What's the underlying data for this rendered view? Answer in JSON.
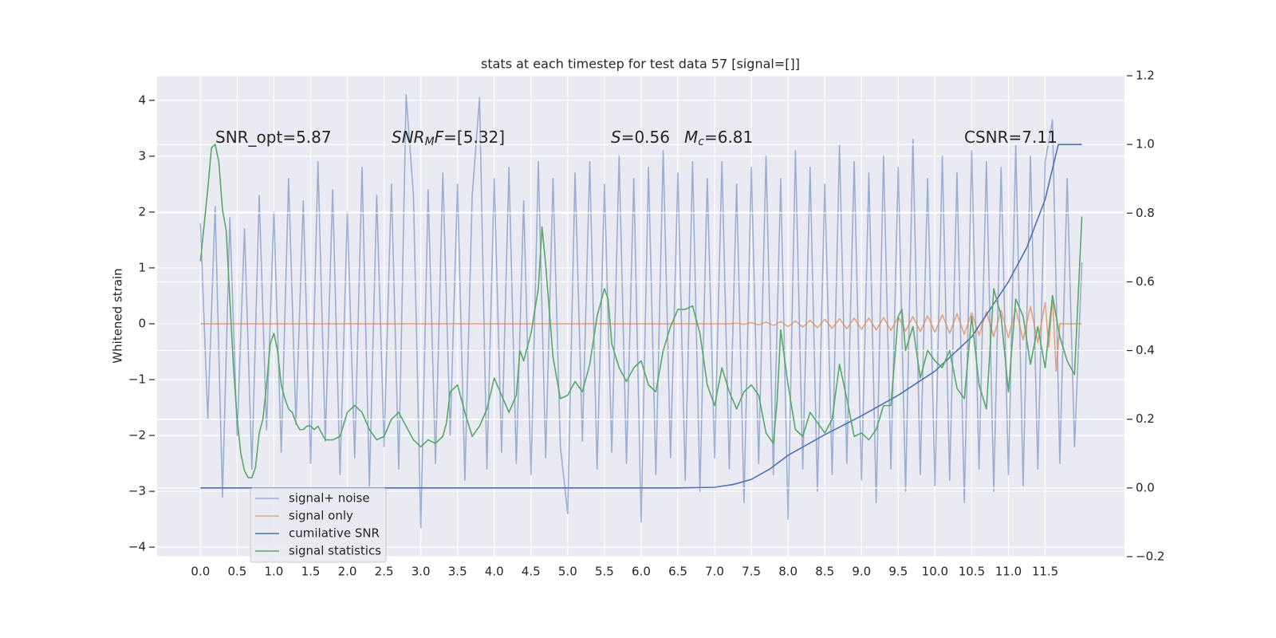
{
  "chart_data": {
    "type": "line",
    "title": "stats at each timestep for test data 57 [signal=[]]",
    "ylabel": "Whitened strain",
    "xlim": [
      -0.59,
      12.58
    ],
    "ylim": [
      -4.17,
      4.44
    ],
    "y2lim": [
      -0.2,
      1.2
    ],
    "xticks": [
      {
        "value": 0,
        "label": "0.0"
      },
      0.5,
      {
        "value": 1,
        "label": "1.0"
      },
      1.5,
      {
        "value": 2,
        "label": "2.0"
      },
      2.5,
      {
        "value": 3,
        "label": "3.0"
      },
      3.5,
      {
        "value": 4,
        "label": "4.0"
      },
      4.5,
      {
        "value": 5,
        "label": "5.0"
      },
      5.5,
      {
        "value": 6,
        "label": "6.0"
      },
      6.5,
      {
        "value": 7,
        "label": "7.0"
      },
      7.5,
      {
        "value": 8,
        "label": "8.0"
      },
      8.5,
      {
        "value": 9,
        "label": "9.0"
      },
      9.5,
      {
        "value": 10,
        "label": "10.0"
      },
      10.5,
      {
        "value": 11,
        "label": "11.0"
      },
      11.5
    ],
    "yticks": [
      {
        "value": -4,
        "label": "−4"
      },
      {
        "value": -3,
        "label": "−3"
      },
      {
        "value": -2,
        "label": "−2"
      },
      {
        "value": -1,
        "label": "−1"
      },
      0,
      1,
      2,
      3,
      4
    ],
    "y2ticks": [
      {
        "value": -0.2,
        "label": "−0.2"
      },
      {
        "value": 0,
        "label": "0.0"
      },
      0.2,
      0.4,
      0.6,
      0.8,
      {
        "value": 1,
        "label": "1.0"
      },
      1.2
    ],
    "grid": true,
    "legend": "lower left",
    "annotations": [
      [
        {
          "text": "SNR_opt=5.87",
          "style": "normal"
        }
      ],
      [
        {
          "text": "SNR",
          "style": "italic"
        },
        {
          "text": "M",
          "style": "italic-sub"
        },
        {
          "text": "F",
          "style": "italic"
        },
        {
          "text": "=[5.32]",
          "style": "normal"
        }
      ],
      [
        {
          "text": "S",
          "style": "italic"
        },
        {
          "text": "=0.56",
          "style": "normal"
        }
      ],
      [
        {
          "text": "M",
          "style": "italic"
        },
        {
          "text": "c",
          "style": "italic-sub"
        },
        {
          "text": "=6.81",
          "style": "normal"
        }
      ],
      [
        {
          "text": "CSNR=7.11",
          "style": "normal"
        }
      ]
    ],
    "series": [
      {
        "name": "signal+ noise",
        "color": "#4c72b0",
        "opacity": 0.5,
        "x": [
          0,
          0.1,
          0.2,
          0.3,
          0.4,
          0.5,
          0.6,
          0.7,
          0.8,
          0.9,
          1,
          1.1,
          1.2,
          1.3,
          1.4,
          1.5,
          1.6,
          1.7,
          1.8,
          1.9,
          2,
          2.1,
          2.2,
          2.3,
          2.4,
          2.5,
          2.6,
          2.7,
          2.8,
          2.9,
          3,
          3.1,
          3.2,
          3.3,
          3.4,
          3.5,
          3.6,
          3.7,
          3.8,
          3.9,
          4,
          4.1,
          4.2,
          4.3,
          4.4,
          4.5,
          4.6,
          4.7,
          4.8,
          4.9,
          5,
          5.1,
          5.2,
          5.3,
          5.4,
          5.5,
          5.6,
          5.7,
          5.8,
          5.9,
          6,
          6.1,
          6.2,
          6.3,
          6.4,
          6.5,
          6.6,
          6.7,
          6.8,
          6.9,
          7,
          7.1,
          7.2,
          7.3,
          7.4,
          7.5,
          7.6,
          7.7,
          7.8,
          7.9,
          8,
          8.1,
          8.2,
          8.3,
          8.4,
          8.5,
          8.6,
          8.7,
          8.8,
          8.9,
          9,
          9.1,
          9.2,
          9.3,
          9.4,
          9.5,
          9.6,
          9.7,
          9.8,
          9.9,
          10,
          10.1,
          10.2,
          10.3,
          10.4,
          10.5,
          10.6,
          10.7,
          10.8,
          10.9,
          11,
          11.1,
          11.2,
          11.3,
          11.4,
          11.5,
          11.6,
          11.7,
          11.8,
          11.9,
          12
        ],
        "values": [
          1.8,
          -1.7,
          2.1,
          -3.1,
          1.9,
          -2.0,
          1.7,
          -2.6,
          2.3,
          -1.9,
          2.0,
          -2.3,
          2.6,
          -1.8,
          2.2,
          -2.5,
          2.9,
          -2.1,
          2.4,
          -2.7,
          2.0,
          -2.4,
          2.8,
          -2.9,
          2.3,
          -2.2,
          2.5,
          -2.6,
          4.1,
          2.3,
          -3.65,
          2.4,
          -2.5,
          2.7,
          -2.0,
          2.5,
          -2.8,
          2.3,
          4.05,
          -2.6,
          2.6,
          -2.3,
          2.8,
          -2.5,
          2.2,
          -2.7,
          2.9,
          -2.4,
          2.6,
          -2.2,
          -3.4,
          2.7,
          -2.1,
          2.9,
          -2.6,
          2.5,
          -2.3,
          3.0,
          -2.5,
          2.6,
          -3.55,
          2.8,
          -2.7,
          3.1,
          -2.4,
          2.7,
          -2.8,
          2.9,
          -3.0,
          2.6,
          -2.4,
          2.9,
          -2.6,
          2.5,
          -3.2,
          2.8,
          -2.5,
          3.0,
          -2.7,
          2.6,
          -3.5,
          3.1,
          -2.6,
          2.8,
          -3.0,
          2.5,
          -2.7,
          3.2,
          -2.5,
          2.9,
          -2.8,
          2.7,
          -3.2,
          3.0,
          -2.6,
          2.8,
          -3.0,
          3.3,
          -2.7,
          2.6,
          -2.9,
          3.0,
          -2.8,
          2.7,
          -3.2,
          3.1,
          -2.6,
          2.9,
          -3.0,
          2.8,
          -2.7,
          3.2,
          -2.9,
          3.0,
          -2.6,
          2.9,
          3.65,
          -2.5,
          2.6,
          -2.2,
          1.1
        ]
      },
      {
        "name": "signal only",
        "color": "#dd8452",
        "opacity": 0.7,
        "x": [
          0,
          7.2,
          7.3,
          7.4,
          7.5,
          7.6,
          7.7,
          7.8,
          7.9,
          8,
          8.1,
          8.2,
          8.3,
          8.4,
          8.5,
          8.6,
          8.7,
          8.8,
          8.9,
          9,
          9.1,
          9.2,
          9.3,
          9.4,
          9.5,
          9.6,
          9.7,
          9.8,
          9.9,
          10,
          10.1,
          10.2,
          10.3,
          10.4,
          10.5,
          10.6,
          10.7,
          10.8,
          10.9,
          11,
          11.1,
          11.2,
          11.3,
          11.4,
          11.5,
          11.55,
          11.6,
          11.65,
          11.7,
          12
        ],
        "values": [
          0,
          0,
          0.01,
          -0.01,
          0.02,
          -0.02,
          0.03,
          -0.03,
          0.04,
          -0.05,
          0.05,
          -0.06,
          0.06,
          -0.07,
          0.08,
          -0.08,
          0.09,
          -0.09,
          0.1,
          -0.1,
          0.1,
          -0.11,
          0.11,
          -0.12,
          0.12,
          -0.13,
          0.13,
          -0.14,
          0.14,
          -0.15,
          0.16,
          -0.17,
          0.18,
          -0.19,
          0.2,
          -0.21,
          0.22,
          -0.23,
          0.24,
          -0.25,
          0.27,
          -0.29,
          0.31,
          -0.34,
          0.38,
          -0.42,
          0.5,
          -0.85,
          0,
          0
        ]
      },
      {
        "name": "cumilative SNR",
        "color": "#4c72b0",
        "axis": "y2",
        "x": [
          0,
          6.5,
          7,
          7.25,
          7.5,
          7.75,
          8,
          8.5,
          9,
          9.5,
          10,
          10.5,
          11,
          11.25,
          11.5,
          11.6,
          11.68,
          12
        ],
        "values": [
          0,
          0,
          0.002,
          0.01,
          0.025,
          0.055,
          0.095,
          0.155,
          0.21,
          0.27,
          0.34,
          0.44,
          0.6,
          0.7,
          0.84,
          0.93,
          1,
          1
        ]
      },
      {
        "name": "signal statistics",
        "color": "#55a868",
        "axis": "y2",
        "x": [
          0,
          0.1,
          0.15,
          0.2,
          0.25,
          0.3,
          0.35,
          0.4,
          0.45,
          0.5,
          0.55,
          0.6,
          0.65,
          0.7,
          0.75,
          0.8,
          0.85,
          0.9,
          0.95,
          1,
          1.05,
          1.1,
          1.15,
          1.2,
          1.25,
          1.3,
          1.35,
          1.4,
          1.45,
          1.5,
          1.55,
          1.6,
          1.65,
          1.7,
          1.75,
          1.8,
          1.9,
          2,
          2.1,
          2.2,
          2.3,
          2.4,
          2.5,
          2.6,
          2.7,
          2.8,
          2.9,
          3,
          3.1,
          3.2,
          3.3,
          3.35,
          3.4,
          3.5,
          3.6,
          3.7,
          3.8,
          3.9,
          4,
          4.1,
          4.2,
          4.3,
          4.35,
          4.4,
          4.5,
          4.6,
          4.65,
          4.7,
          4.8,
          4.9,
          5,
          5.1,
          5.2,
          5.3,
          5.4,
          5.5,
          5.55,
          5.6,
          5.7,
          5.8,
          5.9,
          6,
          6.1,
          6.2,
          6.3,
          6.4,
          6.5,
          6.6,
          6.7,
          6.8,
          6.9,
          7,
          7.1,
          7.2,
          7.3,
          7.4,
          7.5,
          7.6,
          7.7,
          7.8,
          7.85,
          7.9,
          8,
          8.1,
          8.2,
          8.3,
          8.4,
          8.5,
          8.6,
          8.7,
          8.8,
          8.9,
          9,
          9.1,
          9.2,
          9.3,
          9.4,
          9.5,
          9.55,
          9.6,
          9.7,
          9.8,
          9.9,
          10,
          10.1,
          10.2,
          10.3,
          10.4,
          10.5,
          10.6,
          10.7,
          10.8,
          10.9,
          11,
          11.1,
          11.2,
          11.3,
          11.4,
          11.5,
          11.6,
          11.7,
          11.8,
          11.9,
          12
        ],
        "values": [
          0.66,
          0.87,
          0.99,
          1,
          0.95,
          0.81,
          0.75,
          0.55,
          0.35,
          0.2,
          0.1,
          0.05,
          0.03,
          0.03,
          0.06,
          0.16,
          0.2,
          0.3,
          0.42,
          0.45,
          0.4,
          0.3,
          0.26,
          0.23,
          0.22,
          0.19,
          0.17,
          0.17,
          0.18,
          0.18,
          0.17,
          0.18,
          0.16,
          0.14,
          0.14,
          0.14,
          0.15,
          0.22,
          0.24,
          0.22,
          0.17,
          0.14,
          0.15,
          0.2,
          0.22,
          0.18,
          0.14,
          0.12,
          0.14,
          0.13,
          0.15,
          0.19,
          0.28,
          0.3,
          0.22,
          0.15,
          0.18,
          0.23,
          0.32,
          0.27,
          0.22,
          0.27,
          0.4,
          0.37,
          0.45,
          0.58,
          0.76,
          0.65,
          0.38,
          0.26,
          0.27,
          0.31,
          0.28,
          0.36,
          0.5,
          0.58,
          0.55,
          0.42,
          0.35,
          0.31,
          0.35,
          0.37,
          0.3,
          0.28,
          0.4,
          0.47,
          0.52,
          0.52,
          0.53,
          0.45,
          0.3,
          0.24,
          0.35,
          0.28,
          0.23,
          0.28,
          0.3,
          0.27,
          0.16,
          0.13,
          0.25,
          0.46,
          0.3,
          0.17,
          0.15,
          0.22,
          0.19,
          0.16,
          0.2,
          0.36,
          0.26,
          0.15,
          0.16,
          0.14,
          0.17,
          0.24,
          0.24,
          0.5,
          0.52,
          0.4,
          0.47,
          0.32,
          0.4,
          0.37,
          0.35,
          0.4,
          0.29,
          0.26,
          0.5,
          0.3,
          0.23,
          0.58,
          0.5,
          0.28,
          0.55,
          0.5,
          0.36,
          0.47,
          0.35,
          0.56,
          0.44,
          0.37,
          0.33,
          0.79
        ]
      }
    ]
  }
}
